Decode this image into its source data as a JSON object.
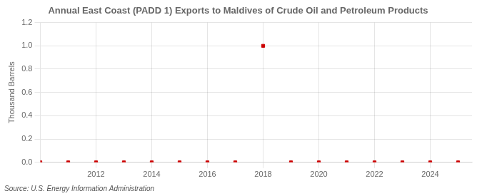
{
  "chart_data": {
    "type": "scatter",
    "title": "Annual East Coast (PADD 1) Exports to Maldives of Crude Oil and Petroleum Products",
    "ylabel": "Thousand Barrels",
    "source": "Source: U.S. Energy Information Administration",
    "x": [
      2010,
      2011,
      2012,
      2013,
      2014,
      2015,
      2016,
      2017,
      2018,
      2019,
      2020,
      2021,
      2022,
      2023,
      2024,
      2025
    ],
    "values": [
      0,
      0,
      0,
      0,
      0,
      0,
      0,
      0,
      1.0,
      0,
      0,
      0,
      0,
      0,
      0,
      0
    ],
    "color": "#cc0000",
    "marker": "square",
    "xlim": [
      2010.0,
      2025.5
    ],
    "xticks": [
      2012,
      2014,
      2016,
      2018,
      2020,
      2022,
      2024
    ],
    "ylim": [
      0,
      1.2
    ],
    "yticks": [
      {
        "value": 0.0,
        "label": "0.0"
      },
      0.2,
      0.4,
      0.6,
      0.8,
      {
        "value": 1.0,
        "label": "1.0"
      },
      1.2
    ],
    "grid": true
  }
}
